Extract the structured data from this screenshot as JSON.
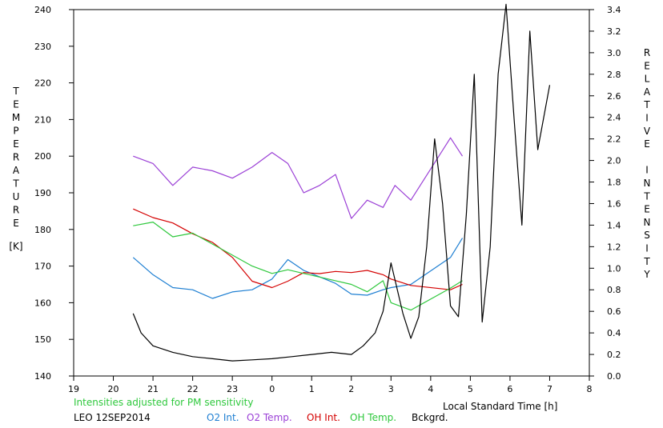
{
  "chart_data": {
    "type": "line",
    "left_axis_label": "TEMPERATURE",
    "left_axis_unit": "[K]",
    "right_axis_label": "RELATIVE INTENSITY",
    "x_label": "Local Standard Time [h]",
    "note": "Intensities adjusted for PM sensitivity",
    "station": "LEO 12SEP2014",
    "x_range": [
      19,
      32
    ],
    "x_ticks": [
      "19",
      "20",
      "21",
      "22",
      "23",
      "0",
      "1",
      "2",
      "3",
      "4",
      "5",
      "6",
      "7",
      "8"
    ],
    "y_left_range": [
      140,
      240
    ],
    "y_left_ticks": [
      "140",
      "150",
      "160",
      "170",
      "180",
      "190",
      "200",
      "210",
      "220",
      "230",
      "240"
    ],
    "y_right_range": [
      0.0,
      3.4
    ],
    "y_right_ticks": [
      "0.0",
      "0.2",
      "0.4",
      "0.6",
      "0.8",
      "1.0",
      "1.2",
      "1.4",
      "1.6",
      "1.8",
      "2.0",
      "2.2",
      "2.4",
      "2.6",
      "2.8",
      "3.0",
      "3.2",
      "3.4"
    ],
    "grid": false,
    "series": [
      {
        "name": "O2 Int.",
        "axis": "right",
        "color": "#1e7fd2",
        "x": [
          20.5,
          21.0,
          21.5,
          22.0,
          22.5,
          23.0,
          23.5,
          24.0,
          24.4,
          24.8,
          25.2,
          25.6,
          26.0,
          26.4,
          26.8,
          27.0,
          27.5,
          28.5,
          28.8
        ],
        "y": [
          1.1,
          0.94,
          0.82,
          0.8,
          0.72,
          0.78,
          0.8,
          0.9,
          1.08,
          0.98,
          0.92,
          0.86,
          0.76,
          0.75,
          0.8,
          0.82,
          0.85,
          1.1,
          1.28
        ]
      },
      {
        "name": "O2 Temp.",
        "axis": "left",
        "color": "#9b40d6",
        "x": [
          20.5,
          21.0,
          21.5,
          22.0,
          22.5,
          23.0,
          23.5,
          24.0,
          24.4,
          24.8,
          25.2,
          25.6,
          26.0,
          26.4,
          26.8,
          27.1,
          27.5,
          28.5,
          28.8
        ],
        "y": [
          200,
          198,
          192,
          197,
          196,
          194,
          197,
          201,
          198,
          190,
          192,
          195,
          183,
          188,
          186,
          192,
          188,
          205,
          200
        ]
      },
      {
        "name": "OH Int.",
        "axis": "right",
        "color": "#d40000",
        "x": [
          20.5,
          21.0,
          21.5,
          22.0,
          22.5,
          23.0,
          23.5,
          24.0,
          24.4,
          24.8,
          25.2,
          25.6,
          26.0,
          26.4,
          26.8,
          27.0,
          27.5,
          28.5,
          28.8
        ],
        "y": [
          1.55,
          1.47,
          1.42,
          1.32,
          1.24,
          1.1,
          0.88,
          0.82,
          0.88,
          0.96,
          0.95,
          0.97,
          0.96,
          0.98,
          0.94,
          0.9,
          0.84,
          0.8,
          0.85
        ]
      },
      {
        "name": "OH Temp.",
        "axis": "left",
        "color": "#2ec83c",
        "x": [
          20.5,
          21.0,
          21.5,
          22.0,
          22.5,
          23.0,
          23.5,
          24.0,
          24.4,
          24.8,
          25.2,
          25.6,
          26.0,
          26.4,
          26.8,
          27.0,
          27.5,
          28.5,
          28.8
        ],
        "y": [
          181,
          182,
          178,
          179,
          176,
          173,
          170,
          168,
          169,
          168,
          167,
          166,
          165,
          163,
          166,
          160,
          158,
          164,
          166
        ]
      },
      {
        "name": "Bckgrd.",
        "axis": "right",
        "color": "#000000",
        "x": [
          20.5,
          20.7,
          21.0,
          21.5,
          22.0,
          22.5,
          23.0,
          23.5,
          24.0,
          24.5,
          25.0,
          25.5,
          26.0,
          26.3,
          26.6,
          26.8,
          27.0,
          27.3,
          27.5,
          27.7,
          27.9,
          28.1,
          28.3,
          28.5,
          28.7,
          28.9,
          29.1,
          29.3,
          29.5,
          29.7,
          29.9,
          30.1,
          30.3,
          30.5,
          30.7,
          31.0
        ],
        "y": [
          0.58,
          0.4,
          0.28,
          0.22,
          0.18,
          0.16,
          0.14,
          0.15,
          0.16,
          0.18,
          0.2,
          0.22,
          0.2,
          0.28,
          0.4,
          0.6,
          1.05,
          0.58,
          0.35,
          0.55,
          1.2,
          2.2,
          1.6,
          0.65,
          0.55,
          1.5,
          2.8,
          0.5,
          1.2,
          2.8,
          3.45,
          2.4,
          1.4,
          3.2,
          2.1,
          2.7
        ]
      }
    ]
  }
}
